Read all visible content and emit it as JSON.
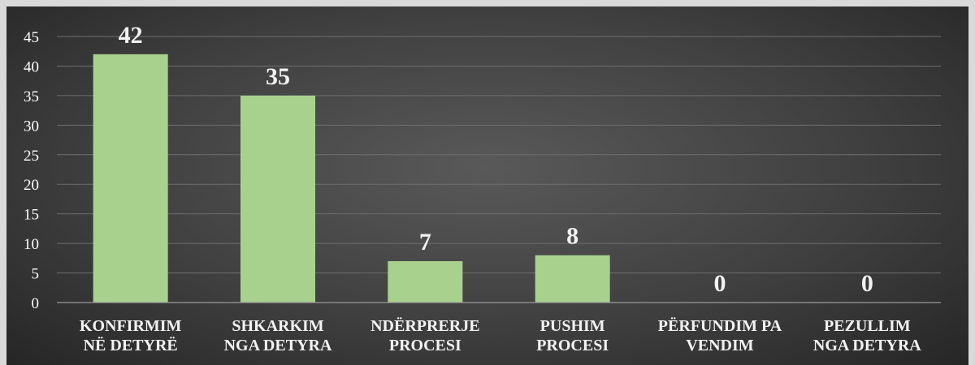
{
  "chart_data": {
    "type": "bar",
    "categories": [
      [
        "KONFIRMIM",
        "NË DETYRË"
      ],
      [
        "SHKARKIM",
        "NGA DETYRA"
      ],
      [
        "NDËRPRERJE",
        "PROCESI"
      ],
      [
        "PUSHIM",
        "PROCESI"
      ],
      [
        "PËRFUNDIM PA",
        "VENDIM"
      ],
      [
        "PEZULLIM",
        "NGA DETYRA"
      ]
    ],
    "values": [
      42,
      35,
      7,
      8,
      0,
      0
    ],
    "data_labels": [
      "42",
      "35",
      "7",
      "8",
      "0",
      "0"
    ],
    "ylim": [
      0,
      45
    ],
    "yticks": [
      "0",
      "5",
      "10",
      "15",
      "20",
      "25",
      "30",
      "35",
      "40",
      "45"
    ],
    "grid": true,
    "legend": "none",
    "bar_color": "#a9d18e",
    "background_color": "#404040",
    "text_color": "#ffffff"
  }
}
